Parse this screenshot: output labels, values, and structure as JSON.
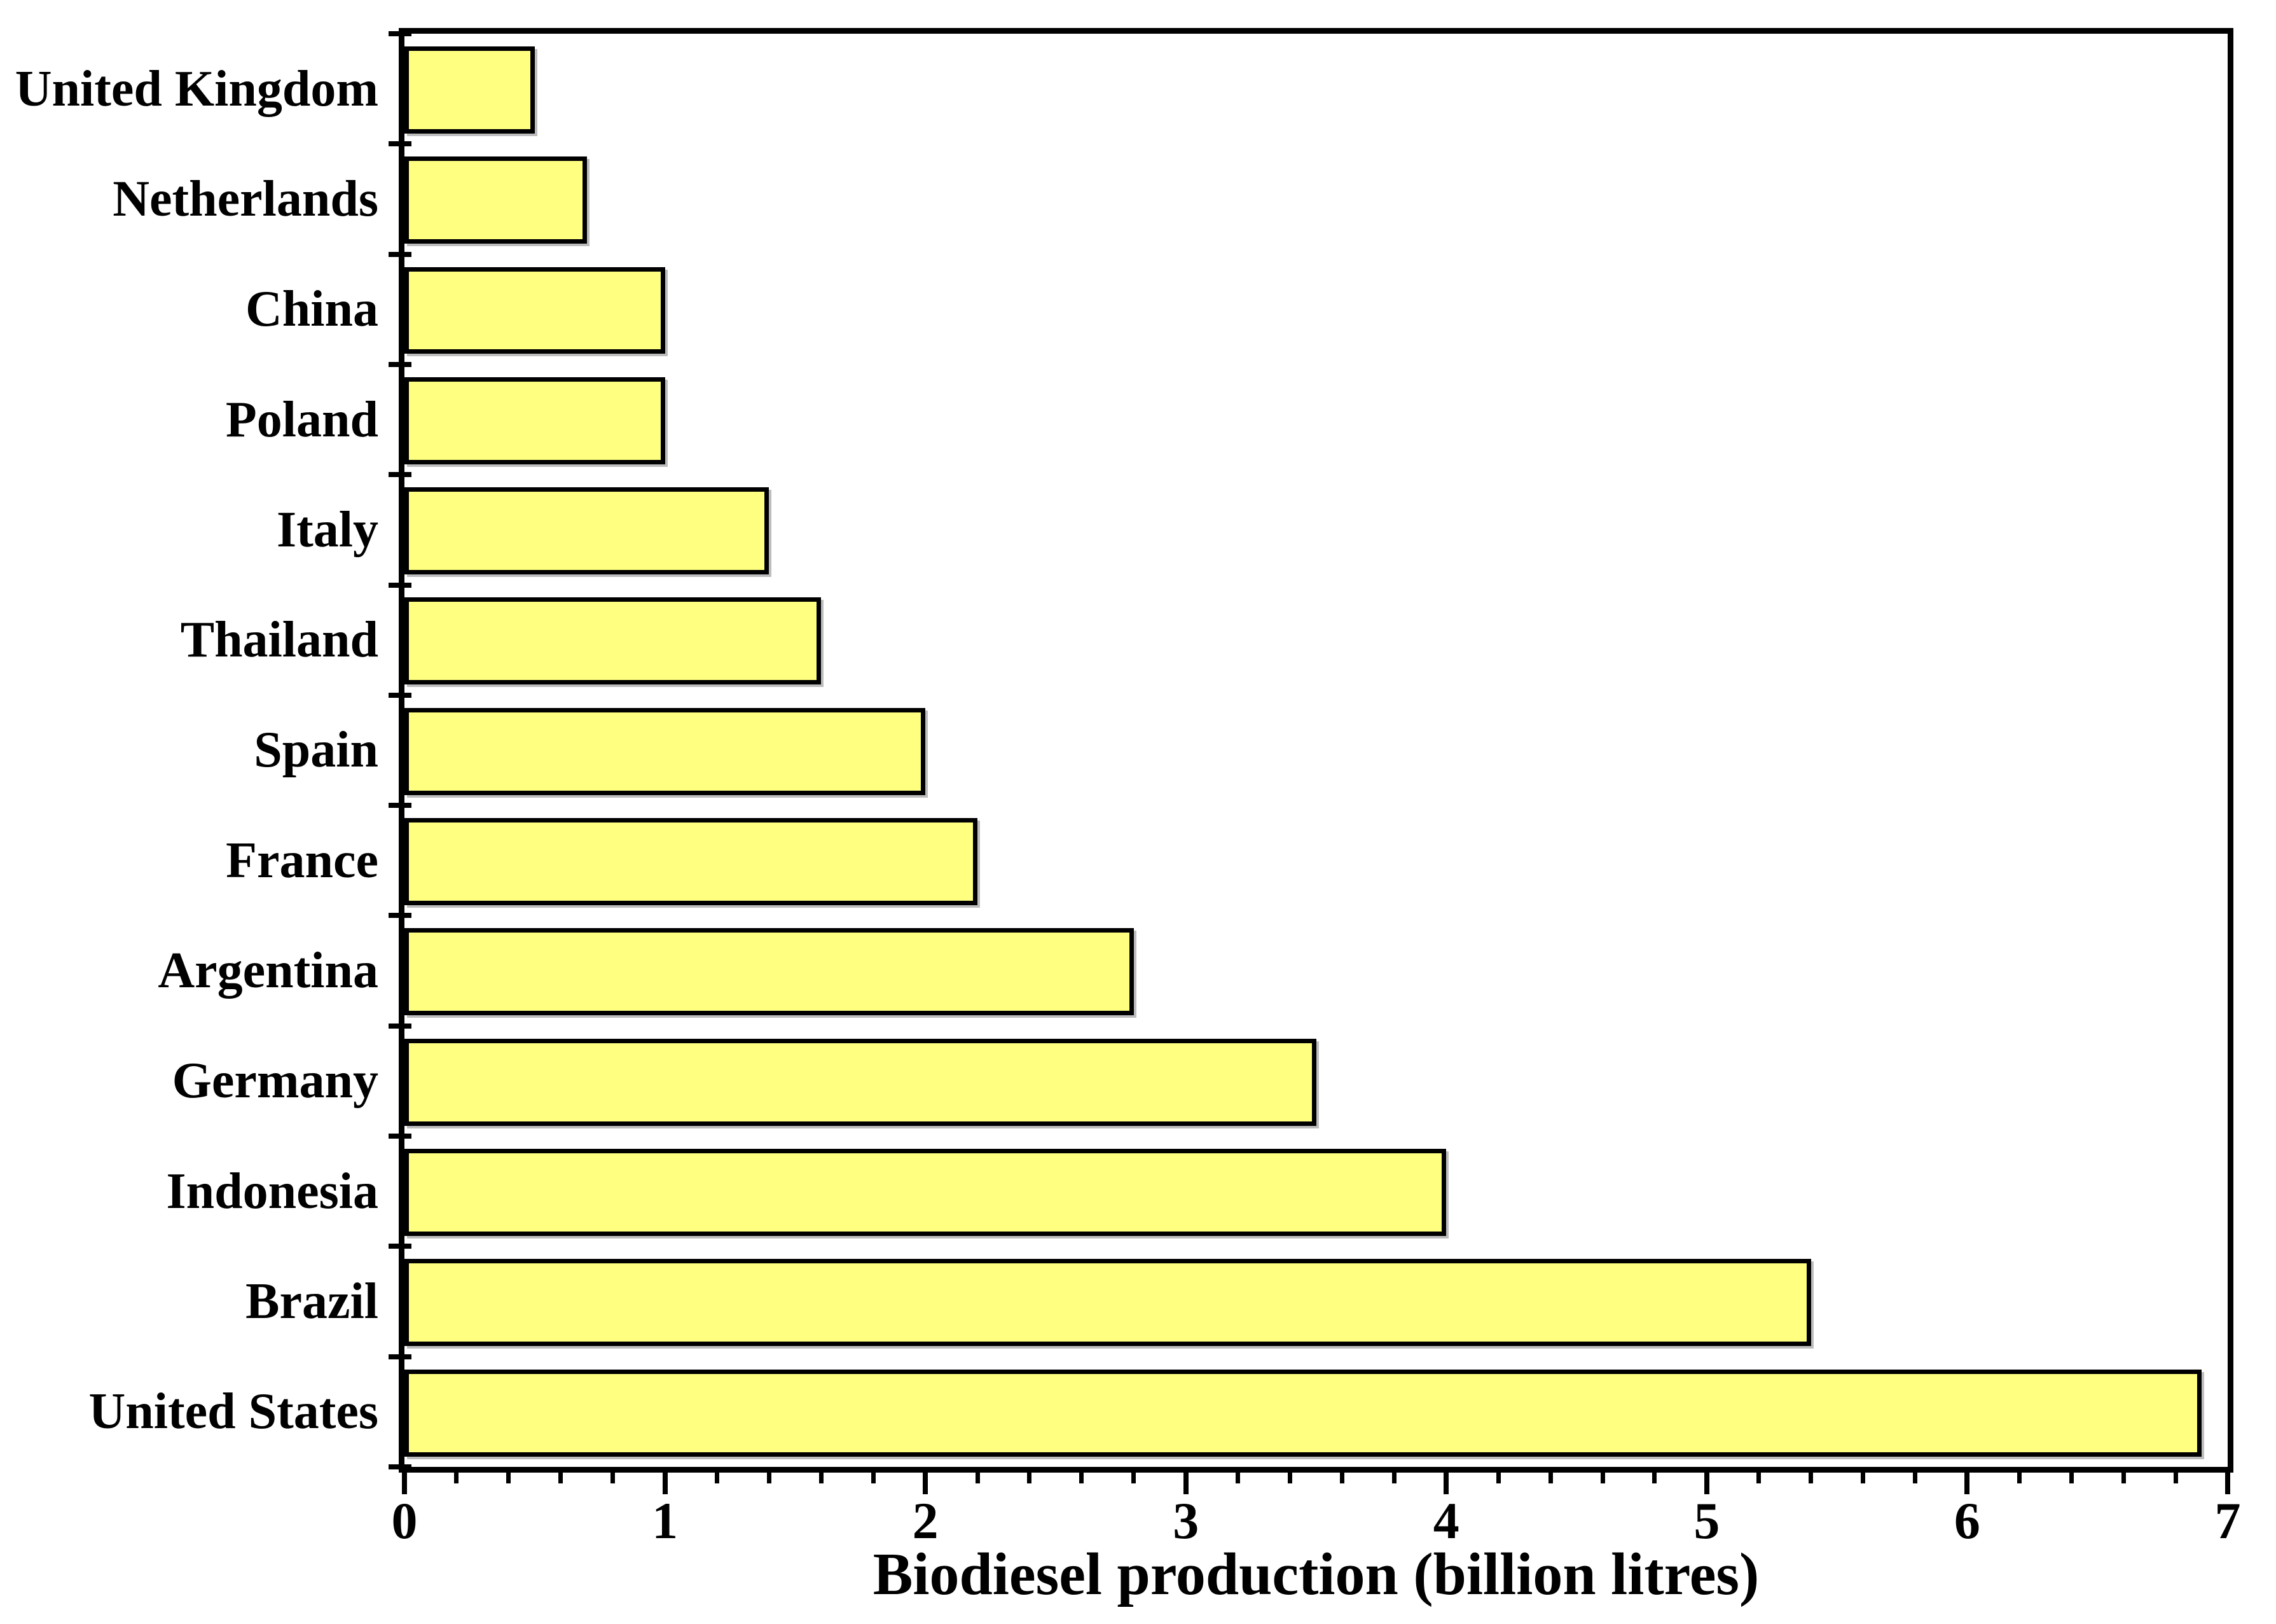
{
  "chart_data": {
    "type": "bar",
    "orientation": "horizontal",
    "xlabel": "Biodiesel production (billion litres)",
    "categories": [
      "United Kingdom",
      "Netherlands",
      "China",
      "Poland",
      "Italy",
      "Thailand",
      "Spain",
      "France",
      "Argentina",
      "Germany",
      "Indonesia",
      "Brazil",
      "United States"
    ],
    "values": [
      0.5,
      0.7,
      1.0,
      1.0,
      1.4,
      1.6,
      2.0,
      2.2,
      2.8,
      3.5,
      4.0,
      5.4,
      6.9
    ],
    "xlim": [
      0,
      7
    ],
    "x_major_ticks": [
      0,
      1,
      2,
      3,
      4,
      5,
      6,
      7
    ],
    "x_tick_labels": [
      "0",
      "1",
      "2",
      "3",
      "4",
      "5",
      "6",
      "7"
    ],
    "x_minor_step": 0.2,
    "grid": false,
    "legend": null,
    "colors": {
      "bar_fill": "#FFFF80",
      "bar_border": "#000000",
      "axis": "#000000",
      "text": "#000000",
      "background": "#FFFFFF"
    }
  }
}
